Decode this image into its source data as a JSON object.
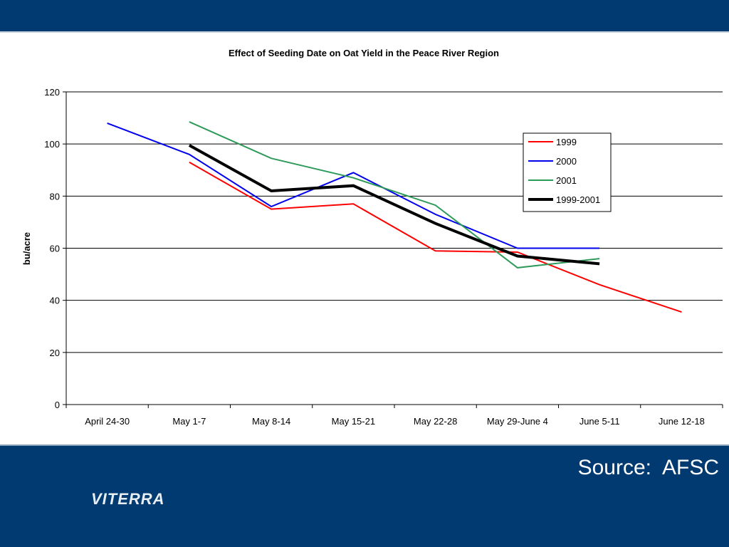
{
  "slide": {
    "source": "Source:  AFSC",
    "logo_text": "VITERRA",
    "colors": {
      "bar": "#003a70"
    }
  },
  "chart_data": {
    "type": "line",
    "title": "Effect of Seeding Date on Oat Yield in the Peace River Region",
    "xlabel": "",
    "ylabel": "bu/acre",
    "ylim": [
      0,
      120
    ],
    "yticks": [
      0,
      20,
      40,
      60,
      80,
      100,
      120
    ],
    "grid": true,
    "legend_position": "right",
    "categories": [
      "April 24-30",
      "May 1-7",
      "May 8-14",
      "May 15-21",
      "May 22-28",
      "May 29-June 4",
      "June 5-11",
      "June 12-18"
    ],
    "series": [
      {
        "name": "1999",
        "color": "#ff0000",
        "width": 2,
        "values": [
          null,
          93,
          75,
          77,
          59,
          58.5,
          46,
          35.5
        ]
      },
      {
        "name": "2000",
        "color": "#0000ee",
        "width": 2,
        "values": [
          108,
          96,
          76,
          89,
          73,
          60,
          60,
          null
        ]
      },
      {
        "name": "2001",
        "color": "#2e9a5a",
        "width": 2,
        "values": [
          null,
          108.5,
          94.5,
          87,
          76.5,
          52.5,
          56,
          null
        ]
      },
      {
        "name": "1999-2001",
        "color": "#000000",
        "width": 4,
        "values": [
          null,
          99.5,
          82,
          84,
          69.5,
          57,
          54,
          null
        ]
      }
    ]
  }
}
